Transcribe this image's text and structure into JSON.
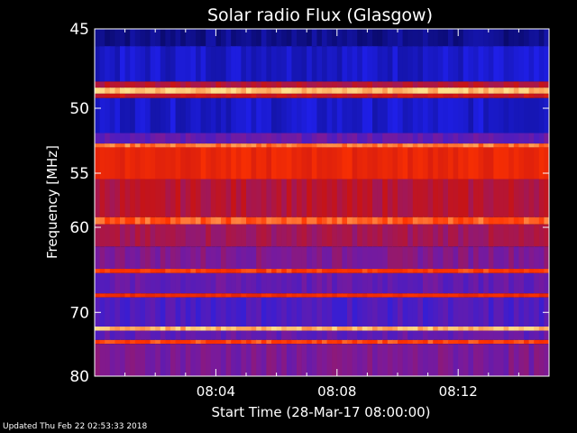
{
  "chart_data": {
    "type": "heatmap",
    "title": "Solar radio Flux (Glasgow)",
    "xlabel": "Start Time (28-Mar-17 08:00:00)",
    "ylabel": "Frequency [MHz]",
    "x_ticks": [
      "08:04",
      "08:08",
      "08:12"
    ],
    "x_tick_values_min": [
      4,
      8,
      12
    ],
    "xlim_min": [
      0,
      15
    ],
    "y_ticks": [
      45,
      50,
      55,
      60,
      70,
      80
    ],
    "ylim": [
      45,
      80
    ],
    "y_scale": "reciprocal",
    "grid": false,
    "colormap": [
      "#0a0a6e",
      "#1f1fe8",
      "#7a1a9a",
      "#c81414",
      "#ff3300",
      "#ffe08a"
    ],
    "bands": [
      {
        "from": 45,
        "to": 46.0,
        "level": 0.05
      },
      {
        "from": 46.0,
        "to": 48.2,
        "level": 0.15
      },
      {
        "from": 48.2,
        "to": 48.6,
        "level": 0.55
      },
      {
        "from": 48.6,
        "to": 49.0,
        "level": 0.97
      },
      {
        "from": 49.0,
        "to": 49.3,
        "level": 0.6
      },
      {
        "from": 49.3,
        "to": 51.8,
        "level": 0.15
      },
      {
        "from": 51.8,
        "to": 52.6,
        "level": 0.35
      },
      {
        "from": 52.6,
        "to": 52.9,
        "level": 0.88
      },
      {
        "from": 52.9,
        "to": 55.5,
        "level": 0.72
      },
      {
        "from": 55.5,
        "to": 59.0,
        "level": 0.55
      },
      {
        "from": 59.0,
        "to": 59.7,
        "level": 0.85
      },
      {
        "from": 59.7,
        "to": 62.0,
        "level": 0.5
      },
      {
        "from": 62.0,
        "to": 64.5,
        "level": 0.42
      },
      {
        "from": 64.5,
        "to": 65.0,
        "level": 0.8
      },
      {
        "from": 65.0,
        "to": 67.5,
        "level": 0.35
      },
      {
        "from": 67.5,
        "to": 68.0,
        "level": 0.75
      },
      {
        "from": 68.0,
        "to": 72.0,
        "level": 0.3
      },
      {
        "from": 72.0,
        "to": 72.6,
        "level": 0.95
      },
      {
        "from": 72.6,
        "to": 74.0,
        "level": 0.35
      },
      {
        "from": 74.0,
        "to": 74.6,
        "level": 0.82
      },
      {
        "from": 74.6,
        "to": 80.0,
        "level": 0.4
      }
    ]
  },
  "footer": {
    "updated": "Updated Thu Feb 22 02:53:33 2018"
  }
}
